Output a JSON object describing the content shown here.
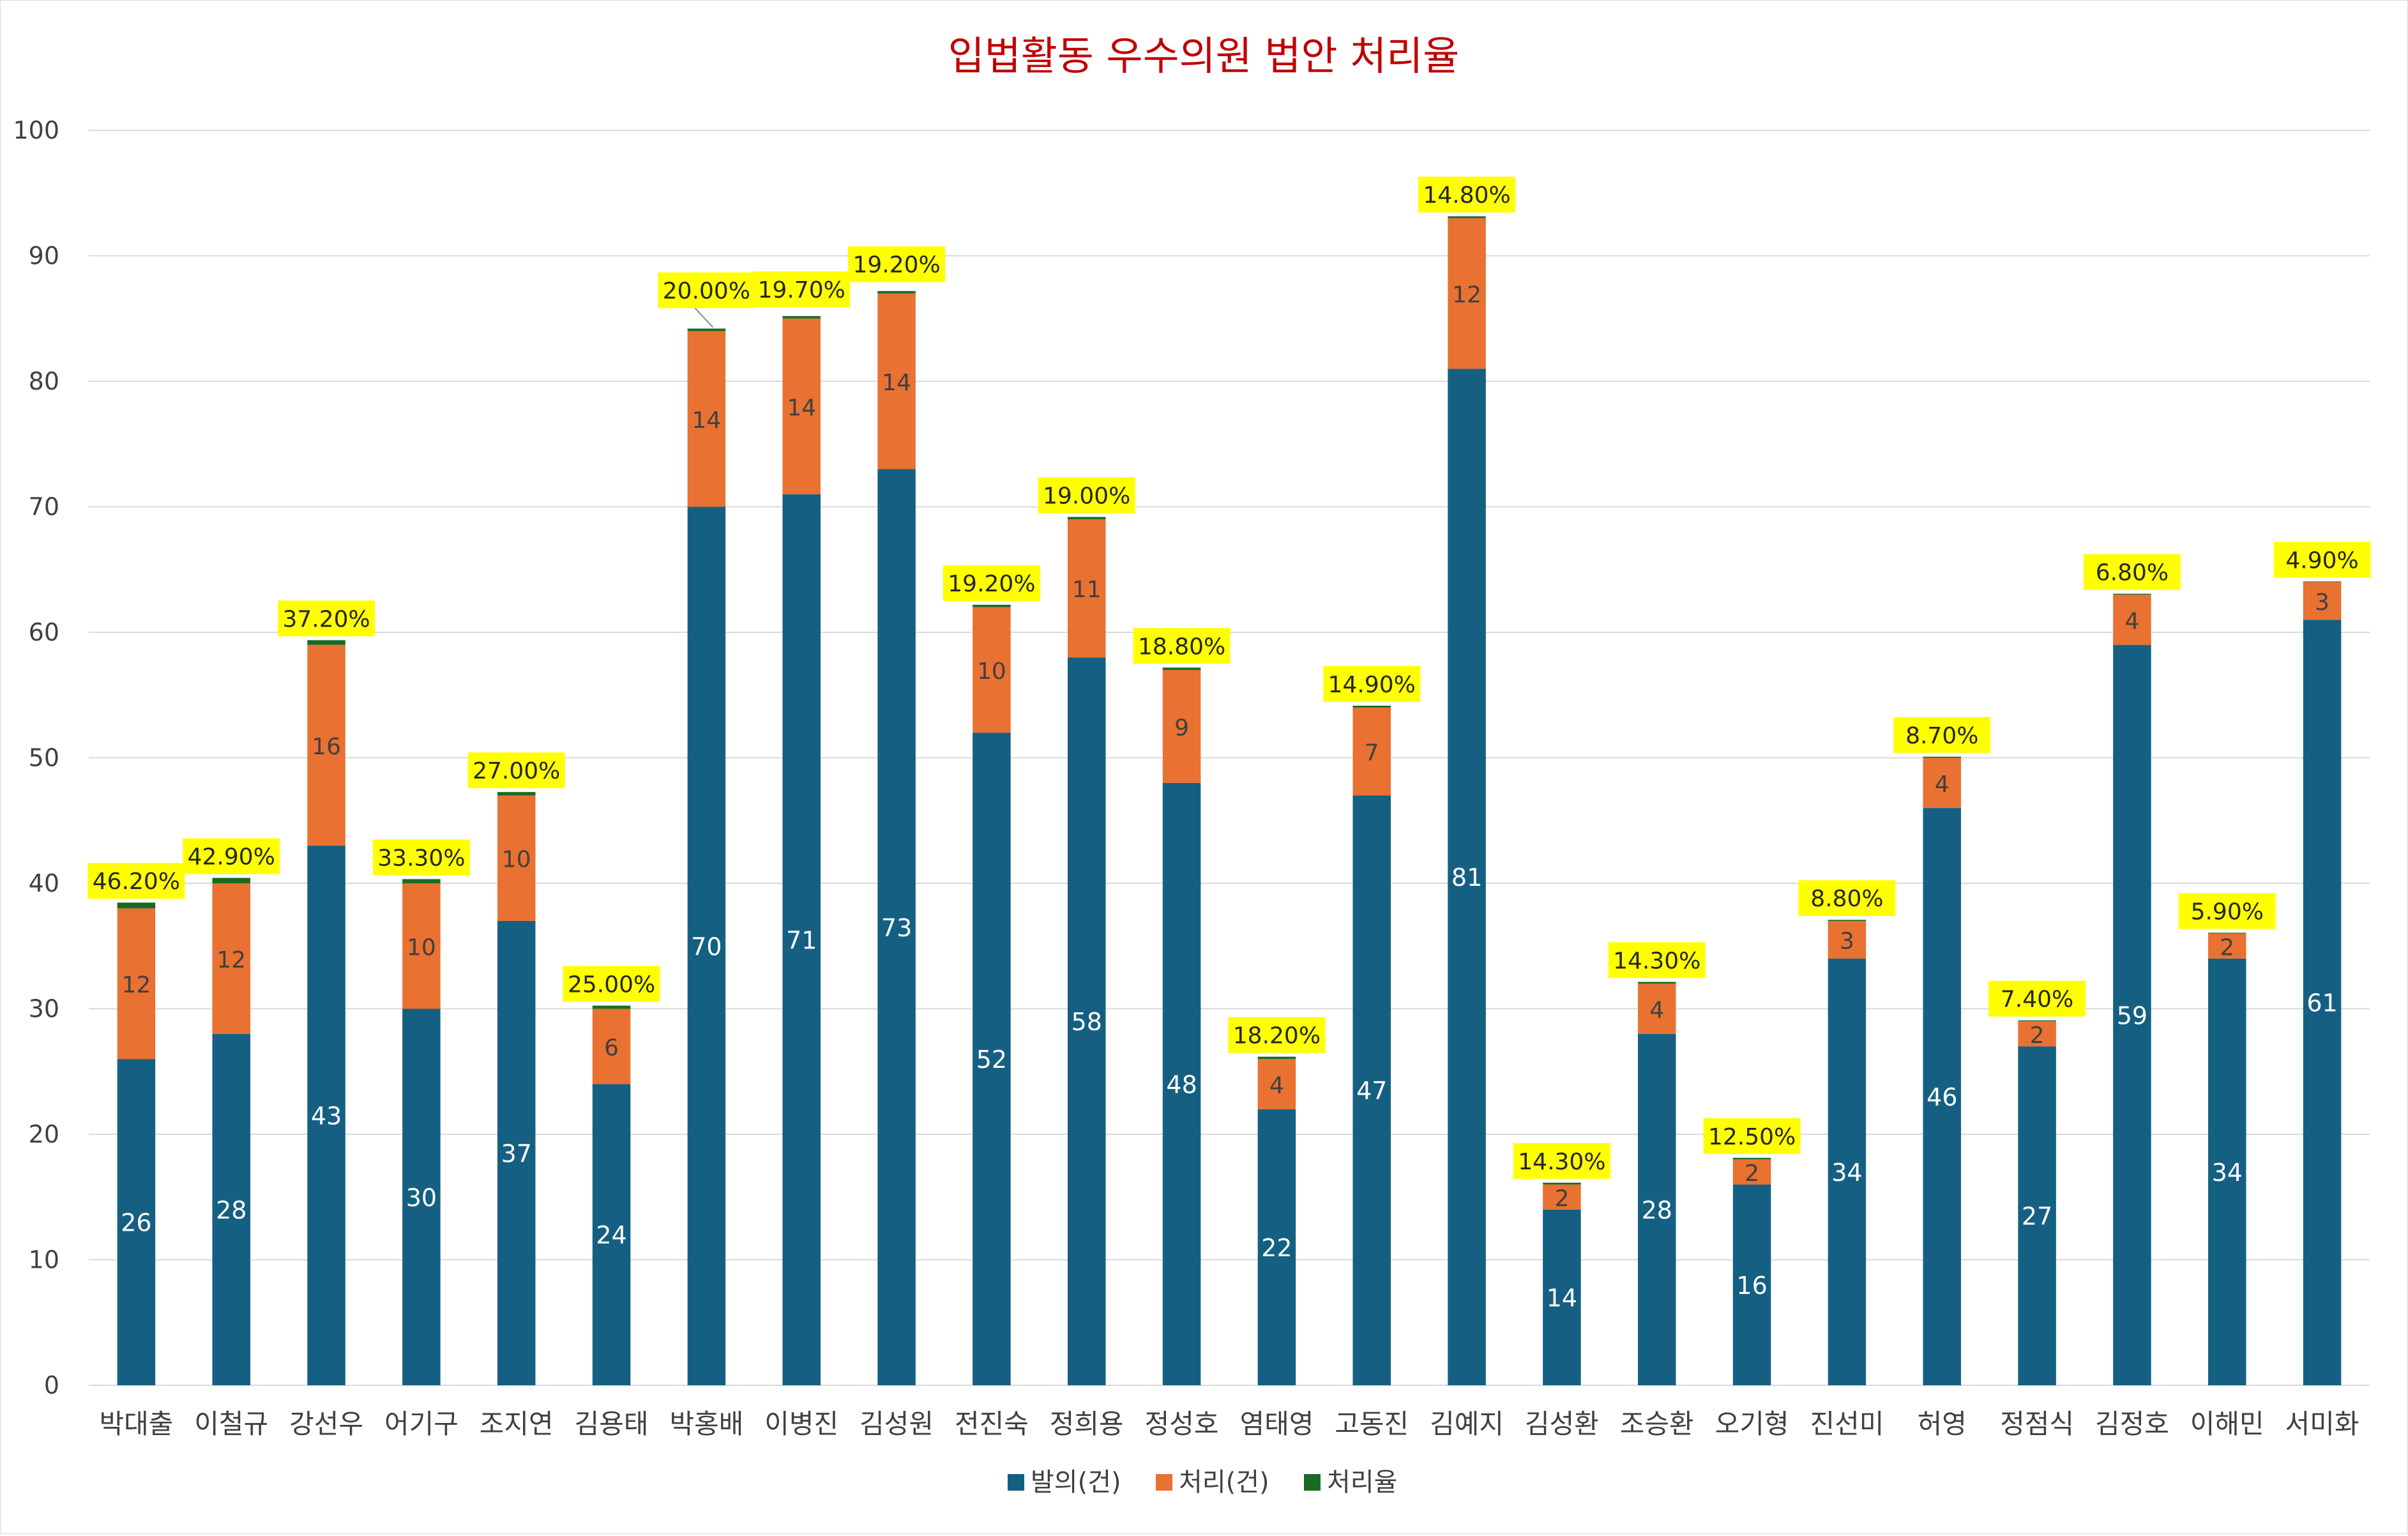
{
  "chart_data": {
    "type": "bar",
    "stacked": true,
    "title": "입법활동 우수의원 법안 처리율",
    "xlabel": "",
    "ylabel": "",
    "ylim": [
      0,
      100
    ],
    "yticks": [
      0,
      10,
      20,
      30,
      40,
      50,
      60,
      70,
      80,
      90,
      100
    ],
    "grid": true,
    "legend_position": "bottom",
    "categories": [
      "박대출",
      "이철규",
      "강선우",
      "어기구",
      "조지연",
      "김용태",
      "박홍배",
      "이병진",
      "김성원",
      "전진숙",
      "정희용",
      "정성호",
      "염태영",
      "고동진",
      "김예지",
      "김성환",
      "조승환",
      "오기형",
      "진선미",
      "허영",
      "정점식",
      "김정호",
      "이해민",
      "서미화"
    ],
    "series": [
      {
        "name": "발의(건)",
        "color": "#156082",
        "values": [
          26,
          28,
          43,
          30,
          37,
          24,
          70,
          71,
          73,
          52,
          58,
          48,
          22,
          47,
          81,
          14,
          28,
          16,
          34,
          46,
          27,
          59,
          34,
          61
        ]
      },
      {
        "name": "처리(건)",
        "color": "#E97132",
        "values": [
          12,
          12,
          16,
          10,
          10,
          6,
          14,
          14,
          14,
          10,
          11,
          9,
          4,
          7,
          12,
          2,
          4,
          2,
          3,
          4,
          2,
          4,
          2,
          3
        ]
      },
      {
        "name": "처리율",
        "color": "#196B24",
        "values": [
          0.462,
          0.429,
          0.372,
          0.333,
          0.27,
          0.25,
          0.2,
          0.197,
          0.192,
          0.192,
          0.19,
          0.188,
          0.182,
          0.149,
          0.148,
          0.143,
          0.143,
          0.125,
          0.088,
          0.087,
          0.074,
          0.068,
          0.059,
          0.049
        ],
        "labels": [
          "46.20%",
          "42.90%",
          "37.20%",
          "33.30%",
          "27.00%",
          "25.00%",
          "20.00%",
          "19.70%",
          "19.20%",
          "19.20%",
          "19.00%",
          "18.80%",
          "18.20%",
          "14.90%",
          "14.80%",
          "14.30%",
          "14.30%",
          "12.50%",
          "8.80%",
          "8.70%",
          "7.40%",
          "6.80%",
          "5.90%",
          "4.90%"
        ]
      }
    ],
    "colors": {
      "title": "#C00000",
      "label_highlight": "#FFFF00",
      "grid": "#d9d9d9",
      "axis_text": "#404040"
    }
  }
}
